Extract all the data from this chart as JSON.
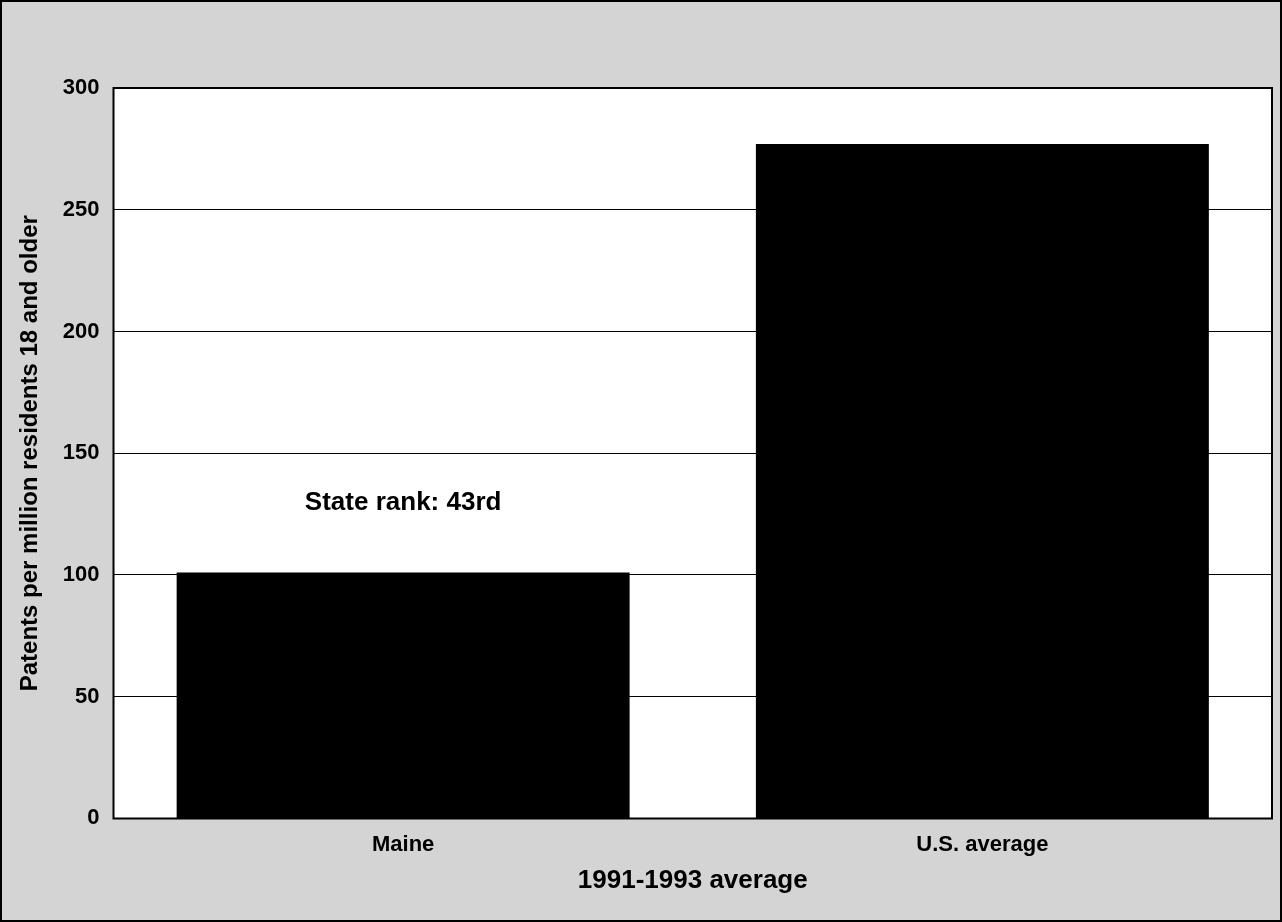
{
  "chart_data": {
    "type": "bar",
    "xlabel": "1991-1993 average",
    "ylabel": "Patents per million residents 18 and older",
    "categories": [
      "Maine",
      "U.S. average"
    ],
    "values": [
      101,
      277
    ],
    "color": "#000000",
    "ylim": [
      0,
      300
    ],
    "yticks": [
      0,
      50,
      100,
      150,
      200,
      250,
      300
    ],
    "grid": "y",
    "annotations": [
      "State rank: 43rd"
    ]
  }
}
